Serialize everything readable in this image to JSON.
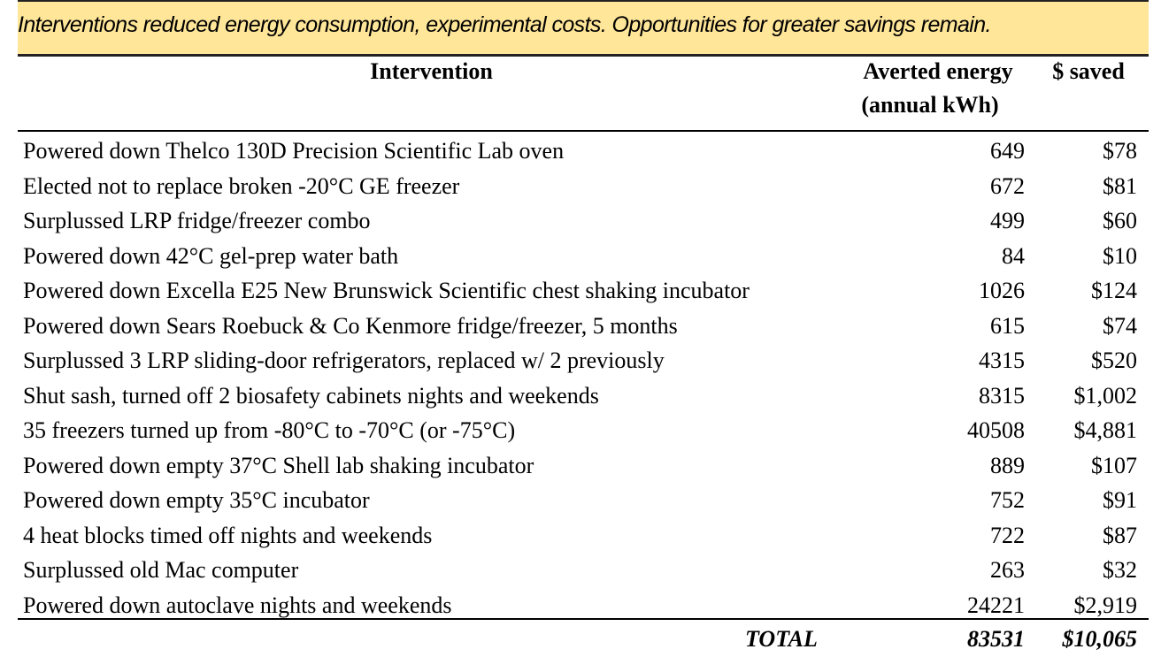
{
  "banner": "Interventions reduced energy consumption, experimental costs. Opportunities for greater savings remain.",
  "colors": {
    "banner_background": "#FFE699"
  },
  "table": {
    "headers": {
      "intervention": "Intervention",
      "energy_line1": "Averted energy",
      "energy_line2": "(annual kWh)",
      "saved": "$ saved"
    },
    "rows": [
      {
        "intervention": "Powered down Thelco 130D Precision Scientific Lab oven",
        "kwh": "649",
        "saved": "$78"
      },
      {
        "intervention": "Elected not to replace broken -20°C GE freezer",
        "kwh": "672",
        "saved": "$81"
      },
      {
        "intervention": "Surplussed LRP fridge/freezer combo",
        "kwh": "499",
        "saved": "$60"
      },
      {
        "intervention": "Powered down 42°C gel-prep water bath",
        "kwh": "84",
        "saved": "$10"
      },
      {
        "intervention": "Powered down Excella E25 New Brunswick Scientific chest shaking incubator",
        "kwh": "1026",
        "saved": "$124"
      },
      {
        "intervention": "Powered down Sears Roebuck & Co Kenmore fridge/freezer, 5 months",
        "kwh": "615",
        "saved": "$74"
      },
      {
        "intervention": "Surplussed 3 LRP sliding-door refrigerators, replaced w/ 2 previously",
        "kwh": "4315",
        "saved": "$520"
      },
      {
        "intervention": "Shut sash, turned off 2 biosafety cabinets nights and weekends",
        "kwh": "8315",
        "saved": "$1,002"
      },
      {
        "intervention": "35 freezers turned up from -80°C to -70°C (or -75°C)",
        "kwh": "40508",
        "saved": "$4,881"
      },
      {
        "intervention": "Powered down empty 37°C Shell lab shaking incubator",
        "kwh": "889",
        "saved": "$107"
      },
      {
        "intervention": "Powered down empty 35°C incubator",
        "kwh": "752",
        "saved": "$91"
      },
      {
        "intervention": "4 heat blocks timed off nights and weekends",
        "kwh": "722",
        "saved": "$87"
      },
      {
        "intervention": "Surplussed old Mac computer",
        "kwh": "263",
        "saved": "$32"
      },
      {
        "intervention": "Powered down autoclave nights and weekends",
        "kwh": "24221",
        "saved": "$2,919"
      }
    ],
    "total": {
      "label": "TOTAL",
      "kwh": "83531",
      "saved": "$10,065"
    }
  }
}
